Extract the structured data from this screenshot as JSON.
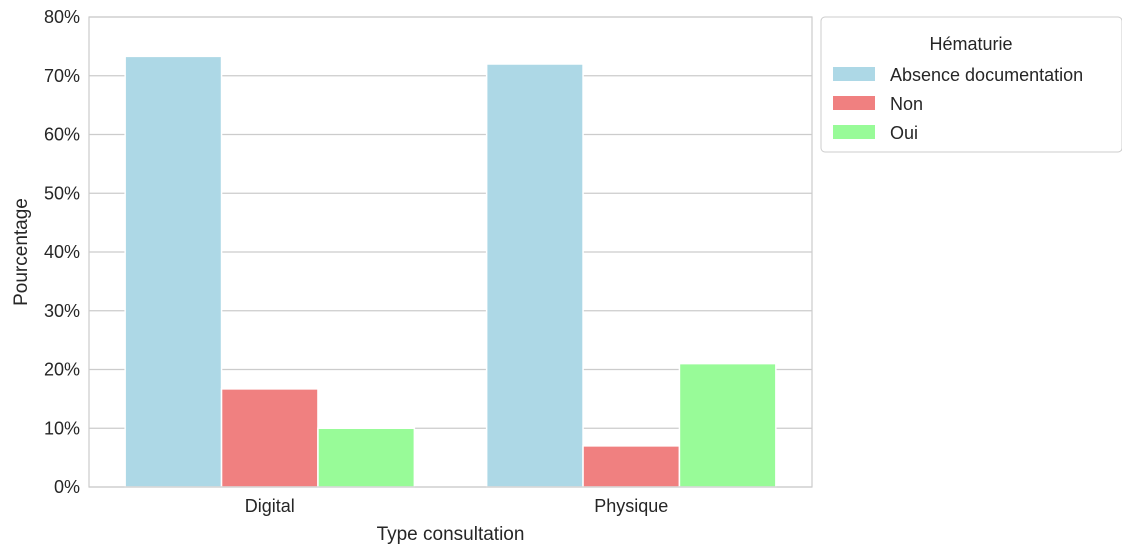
{
  "chart_data": {
    "type": "bar",
    "categories": [
      "Digital",
      "Physique"
    ],
    "series": [
      {
        "name": "Absence documentation",
        "values": [
          73.3,
          72.0
        ],
        "color": "#add8e6"
      },
      {
        "name": "Non",
        "values": [
          16.7,
          7.0
        ],
        "color": "#f08080"
      },
      {
        "name": "Oui",
        "values": [
          10.0,
          21.0
        ],
        "color": "#98fb98"
      }
    ],
    "xlabel": "Type consultation",
    "ylabel": "Pourcentage",
    "ylim": [
      0,
      80
    ],
    "yticks": [
      "0%",
      "10%",
      "20%",
      "30%",
      "40%",
      "50%",
      "60%",
      "70%",
      "80%"
    ],
    "legend_title": "Hématurie",
    "legend_position": "outside-top-right",
    "grid": "horizontal",
    "colors": {
      "grid": "#cccccc",
      "axis": "#cccccc",
      "text": "#262626"
    }
  }
}
